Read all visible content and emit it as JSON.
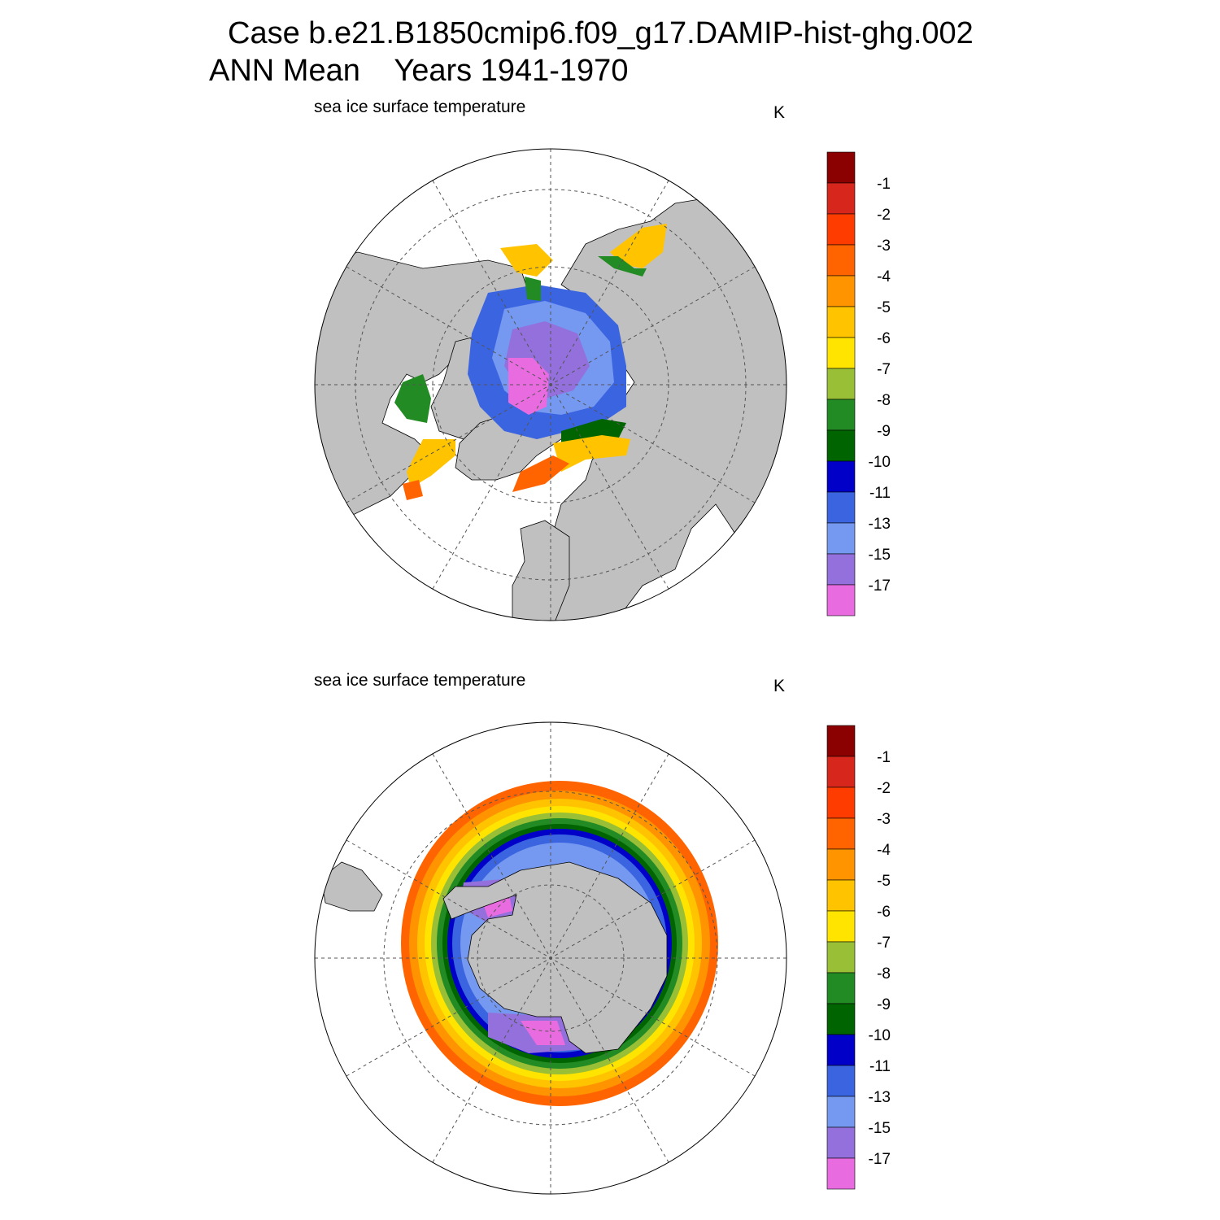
{
  "title": {
    "line1": "Case b.e21.B1850cmip6.f09_g17.DAMIP-hist-ghg.002",
    "line2": "ANN Mean    Years 1941-1970"
  },
  "panels": [
    {
      "id": "north",
      "hemisphere": "Arctic",
      "label": "sea ice surface temperature",
      "units": "K"
    },
    {
      "id": "south",
      "hemisphere": "Antarctic",
      "label": "sea ice surface temperature",
      "units": "K"
    }
  ],
  "colorbar": {
    "levels": [
      "-1",
      "-2",
      "-3",
      "-4",
      "-5",
      "-6",
      "-7",
      "-8",
      "-9",
      "-10",
      "-11",
      "-13",
      "-15",
      "-17"
    ],
    "colors": [
      "#8b0000",
      "#d7261b",
      "#ff3c00",
      "#ff6400",
      "#ff9400",
      "#ffc300",
      "#ffe400",
      "#98bf35",
      "#238b23",
      "#006400",
      "#0000c8",
      "#3a64e0",
      "#7598f0",
      "#9370db",
      "#e86ce0"
    ]
  },
  "map_colors": {
    "land": "#c0c0c0",
    "ocean": "#ffffff",
    "grid": "#555555"
  }
}
